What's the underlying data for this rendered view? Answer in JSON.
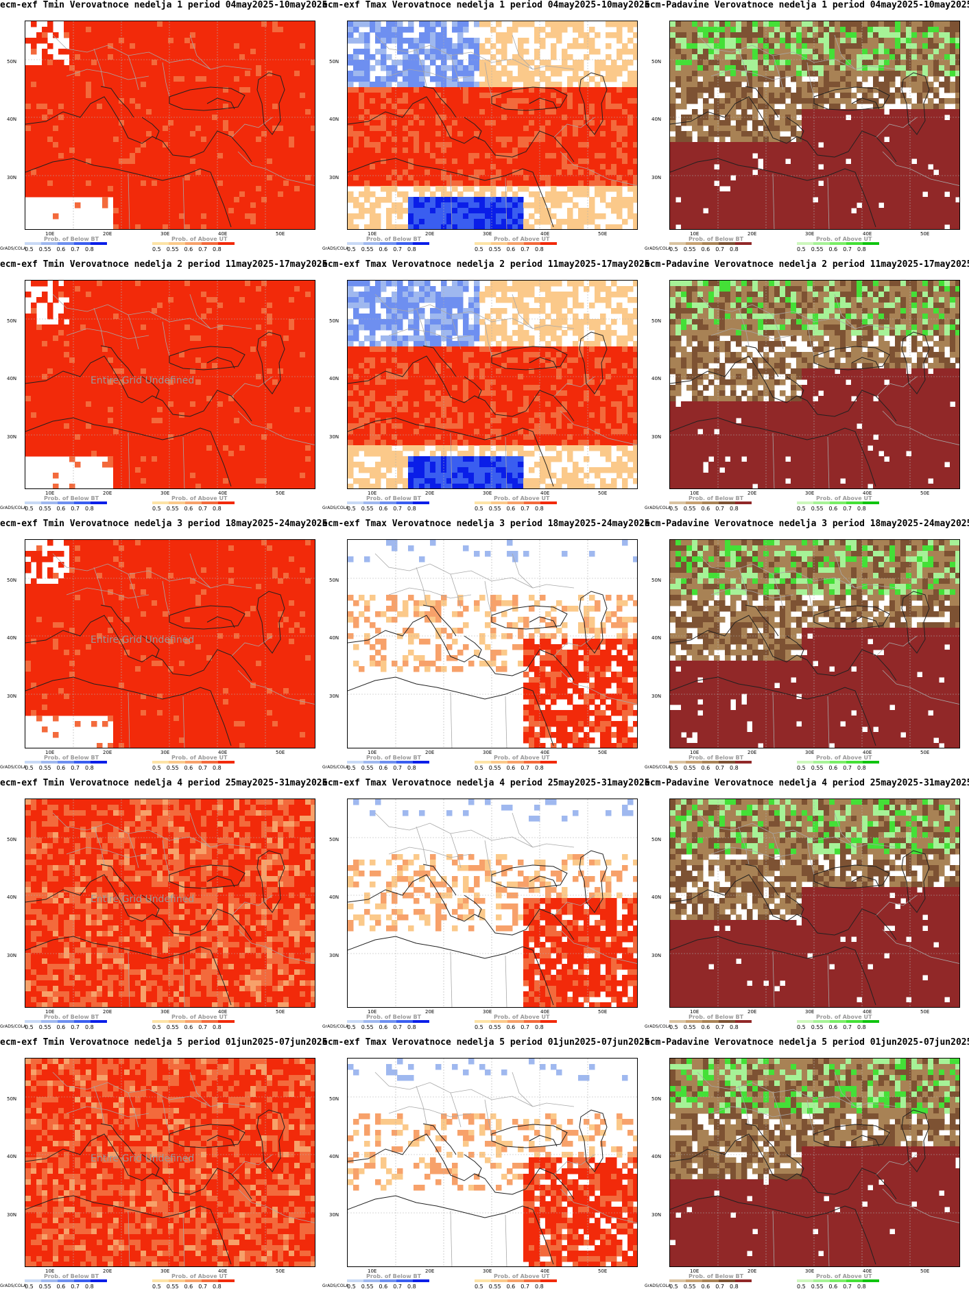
{
  "legend": {
    "below_title": "Prob. of Below BT",
    "above_title": "Prob. of Above UT",
    "ticks": [
      "0.5",
      "0.55",
      "0.6",
      "0.7",
      "0.8"
    ],
    "grads_label": "GrADS/COLA"
  },
  "axes": {
    "x_ticks": [
      "10E",
      "20E",
      "30E",
      "40E",
      "50E"
    ],
    "y_ticks": [
      "50N",
      "40N",
      "30N"
    ]
  },
  "undefined_note": "Entire Grid Undefined",
  "colors": {
    "temp_below": [
      "#c8d9f5",
      "#9fb8ef",
      "#6e8ff0",
      "#3a5ef0",
      "#0a1ee8"
    ],
    "temp_above": [
      "#fde3a6",
      "#fbc98a",
      "#f7a16a",
      "#f36a3c",
      "#f22a0a"
    ],
    "precip_below": [
      "#d9c2a0",
      "#c6a071",
      "#a88255",
      "#7d5233",
      "#912828"
    ],
    "precip_above": [
      "#cdf7bd",
      "#a6f297",
      "#7aee67",
      "#44e037",
      "#0fc40f"
    ]
  },
  "rows": [
    {
      "panels": [
        {
          "title": "ecm-exf Tmin Verovatnoce nedelja 1 period 04may2025-10may2025",
          "variable": "tmin",
          "dominant": "above_high"
        },
        {
          "title": "ecm-exf Tmax Verovatnoce nedelja 1 period 04may2025-10may2025",
          "variable": "tmax",
          "dominant": "mixed"
        },
        {
          "title": "ecm-Padavine Verovatnoce nedelja 1 period 04may2025-10may2025",
          "variable": "precip",
          "dominant": "below_high"
        }
      ]
    },
    {
      "panels": [
        {
          "title": "ecm-exf Tmin Verovatnoce nedelja 2 period 11may2025-17may2025",
          "variable": "tmin",
          "dominant": "above_high",
          "undefined": true
        },
        {
          "title": "ecm-exf Tmax Verovatnoce nedelja 2 period 11may2025-17may2025",
          "variable": "tmax",
          "dominant": "mixed"
        },
        {
          "title": "ecm-Padavine Verovatnoce nedelja 2 period 11may2025-17may2025",
          "variable": "precip",
          "dominant": "below_high"
        }
      ]
    },
    {
      "panels": [
        {
          "title": "ecm-exf Tmin Verovatnoce nedelja 3 period 18may2025-24may2025",
          "variable": "tmin",
          "dominant": "above_high",
          "undefined": true
        },
        {
          "title": "ecm-exf Tmax Verovatnoce nedelja 3 period 18may2025-24may2025",
          "variable": "tmax",
          "dominant": "sparse"
        },
        {
          "title": "ecm-Padavine Verovatnoce nedelja 3 period 18may2025-24may2025",
          "variable": "precip",
          "dominant": "below_high"
        }
      ]
    },
    {
      "panels": [
        {
          "title": "ecm-exf Tmin Verovatnoce nedelja 4 period 25may2025-31may2025",
          "variable": "tmin",
          "dominant": "above_mid",
          "undefined": true
        },
        {
          "title": "ecm-exf Tmax Verovatnoce nedelja 4 period 25may2025-31may2025",
          "variable": "tmax",
          "dominant": "sparse"
        },
        {
          "title": "ecm-Padavine Verovatnoce nedelja 4 period 25may2025-31may2025",
          "variable": "precip",
          "dominant": "below_high"
        }
      ]
    },
    {
      "panels": [
        {
          "title": "ecm-exf Tmin Verovatnoce nedelja 5 period 01jun2025-07jun2025",
          "variable": "tmin",
          "dominant": "above_mid",
          "undefined": true
        },
        {
          "title": "ecm-exf Tmax Verovatnoce nedelja 5 period 01jun2025-07jun2025",
          "variable": "tmax",
          "dominant": "sparse"
        },
        {
          "title": "ecm-Padavine Verovatnoce nedelja 5 period 01jun2025-07jun2025",
          "variable": "precip",
          "dominant": "below_high"
        }
      ]
    }
  ]
}
